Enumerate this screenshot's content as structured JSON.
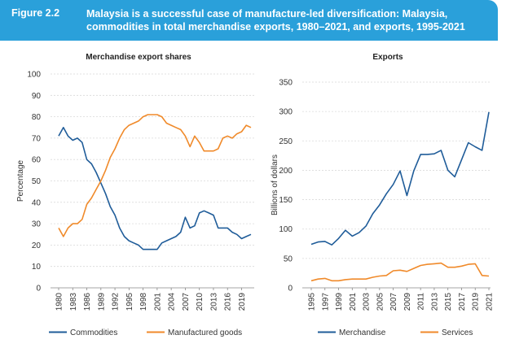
{
  "figure": {
    "number": "Figure 2.2",
    "title": "Malaysia is a successful case of manufacture-led diversification: Malaysia, commodities in total merchandise exports, 1980–2021, and exports, 1995-2021"
  },
  "chart_data": [
    {
      "type": "line",
      "title": "Merchandise export shares",
      "xlabel": "",
      "ylabel": "Percentage",
      "ylim": [
        0,
        100
      ],
      "yticks": [
        "0",
        "10",
        "20",
        "30",
        "40",
        "50",
        "60",
        "70",
        "80",
        "90",
        "100"
      ],
      "x": [
        1980,
        1981,
        1982,
        1983,
        1984,
        1985,
        1986,
        1987,
        1988,
        1989,
        1990,
        1991,
        1992,
        1993,
        1994,
        1995,
        1996,
        1997,
        1998,
        1999,
        2000,
        2001,
        2002,
        2003,
        2004,
        2005,
        2006,
        2007,
        2008,
        2009,
        2010,
        2011,
        2012,
        2013,
        2014,
        2015,
        2016,
        2017,
        2018,
        2019,
        2020,
        2021
      ],
      "xticks": [
        "1980",
        "1983",
        "1986",
        "1989",
        "1992",
        "1995",
        "1998",
        "2001",
        "2004",
        "2007",
        "2010",
        "2013",
        "2016",
        "2019"
      ],
      "legend_position": "bottom",
      "grid": true,
      "series": [
        {
          "name": "Commodities",
          "color": "#1f5c99",
          "values": [
            71,
            75,
            71,
            69,
            70,
            68,
            60,
            58,
            54,
            49,
            44,
            38,
            34,
            28,
            24,
            22,
            21,
            20,
            18,
            18,
            18,
            18,
            21,
            22,
            23,
            24,
            26,
            33,
            28,
            29,
            35,
            36,
            35,
            34,
            28,
            28,
            28,
            26,
            25,
            23,
            24,
            25
          ]
        },
        {
          "name": "Manufactured goods",
          "color": "#f08a2a",
          "values": [
            28,
            24,
            28,
            30,
            30,
            32,
            39,
            42,
            46,
            50,
            55,
            61,
            65,
            70,
            74,
            76,
            77,
            78,
            80,
            81,
            81,
            81,
            80,
            77,
            76,
            75,
            74,
            71,
            66,
            71,
            68,
            64,
            64,
            64,
            65,
            70,
            71,
            70,
            72,
            73,
            76,
            75
          ]
        }
      ]
    },
    {
      "type": "line",
      "title": "Exports",
      "xlabel": "",
      "ylabel": "Billions of dollars",
      "ylim": [
        0,
        350
      ],
      "yticks": [
        "0",
        "50",
        "100",
        "150",
        "200",
        "250",
        "300",
        "350"
      ],
      "x": [
        1995,
        1996,
        1997,
        1998,
        1999,
        2000,
        2001,
        2002,
        2003,
        2004,
        2005,
        2006,
        2007,
        2008,
        2009,
        2010,
        2011,
        2012,
        2013,
        2014,
        2015,
        2016,
        2017,
        2018,
        2019,
        2020,
        2021
      ],
      "xticks": [
        "1995",
        "1997",
        "1999",
        "2001",
        "2003",
        "2005",
        "2007",
        "2009",
        "2011",
        "2013",
        "2015",
        "2017",
        "2019",
        "2021"
      ],
      "legend_position": "bottom",
      "grid": true,
      "series": [
        {
          "name": "Merchandise",
          "color": "#1f5c99",
          "values": [
            74,
            78,
            79,
            73,
            84,
            98,
            88,
            94,
            105,
            126,
            141,
            160,
            176,
            199,
            157,
            199,
            227,
            227,
            228,
            234,
            200,
            189,
            218,
            247,
            240,
            234,
            299
          ]
        },
        {
          "name": "Services",
          "color": "#f08a2a",
          "values": [
            12,
            15,
            16,
            12,
            12,
            14,
            15,
            15,
            15,
            18,
            20,
            21,
            29,
            30,
            28,
            33,
            38,
            40,
            41,
            42,
            35,
            35,
            37,
            40,
            41,
            21,
            20
          ]
        }
      ]
    }
  ]
}
